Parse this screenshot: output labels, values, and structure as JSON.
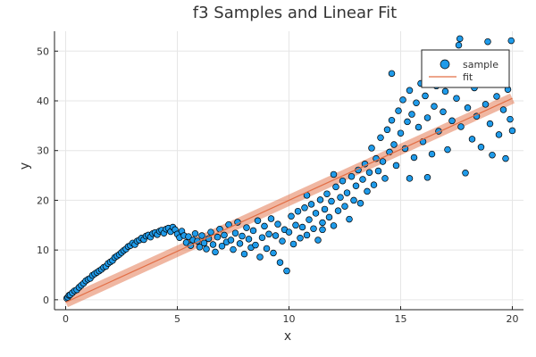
{
  "chart_data": {
    "type": "scatter",
    "title": "f3 Samples and Linear Fit",
    "xlabel": "x",
    "ylabel": "y",
    "xlim": [
      -0.5,
      20.5
    ],
    "ylim": [
      -2,
      54
    ],
    "xticks": [
      0,
      5,
      10,
      15,
      20
    ],
    "yticks": [
      0,
      10,
      20,
      30,
      40,
      50
    ],
    "grid": true,
    "legend_position": "top-right",
    "series": [
      {
        "name": "sample",
        "kind": "scatter",
        "color": "#1f9bea",
        "edge_color": "#000000",
        "points": [
          [
            0.05,
            0.3
          ],
          [
            0.1,
            0.5
          ],
          [
            0.15,
            0.9
          ],
          [
            0.2,
            1.0
          ],
          [
            0.3,
            1.4
          ],
          [
            0.4,
            1.8
          ],
          [
            0.5,
            2.0
          ],
          [
            0.6,
            2.5
          ],
          [
            0.7,
            2.9
          ],
          [
            0.8,
            3.3
          ],
          [
            0.9,
            3.8
          ],
          [
            1.0,
            4.1
          ],
          [
            1.1,
            4.3
          ],
          [
            1.2,
            4.9
          ],
          [
            1.3,
            5.2
          ],
          [
            1.4,
            5.5
          ],
          [
            1.5,
            5.8
          ],
          [
            1.6,
            6.1
          ],
          [
            1.7,
            6.5
          ],
          [
            1.8,
            6.7
          ],
          [
            1.9,
            7.3
          ],
          [
            2.0,
            7.6
          ],
          [
            2.1,
            7.9
          ],
          [
            2.2,
            8.5
          ],
          [
            2.3,
            8.8
          ],
          [
            2.4,
            9.1
          ],
          [
            2.5,
            9.5
          ],
          [
            2.6,
            9.9
          ],
          [
            2.7,
            10.2
          ],
          [
            2.8,
            10.7
          ],
          [
            2.9,
            10.9
          ],
          [
            3.0,
            11.4
          ],
          [
            3.1,
            11.1
          ],
          [
            3.2,
            11.8
          ],
          [
            3.3,
            12.0
          ],
          [
            3.4,
            12.4
          ],
          [
            3.5,
            12.1
          ],
          [
            3.6,
            12.8
          ],
          [
            3.7,
            13.0
          ],
          [
            3.8,
            12.6
          ],
          [
            3.9,
            13.3
          ],
          [
            4.0,
            13.5
          ],
          [
            4.1,
            13.1
          ],
          [
            4.2,
            13.8
          ],
          [
            4.3,
            14.0
          ],
          [
            4.4,
            13.4
          ],
          [
            4.5,
            14.2
          ],
          [
            4.6,
            14.4
          ],
          [
            4.7,
            13.7
          ],
          [
            4.8,
            14.6
          ],
          [
            4.9,
            14.1
          ],
          [
            5.0,
            13.2
          ],
          [
            5.1,
            12.5
          ],
          [
            5.2,
            13.8
          ],
          [
            5.3,
            12.9
          ],
          [
            5.4,
            11.5
          ],
          [
            5.5,
            12.7
          ],
          [
            5.6,
            10.9
          ],
          [
            5.7,
            12.0
          ],
          [
            5.8,
            13.3
          ],
          [
            5.9,
            11.8
          ],
          [
            6.0,
            10.6
          ],
          [
            6.1,
            12.9
          ],
          [
            6.2,
            11.4
          ],
          [
            6.3,
            10.2
          ],
          [
            6.4,
            12.3
          ],
          [
            6.5,
            13.6
          ],
          [
            6.6,
            11.1
          ],
          [
            6.7,
            9.6
          ],
          [
            6.8,
            12.6
          ],
          [
            6.9,
            14.2
          ],
          [
            7.0,
            10.8
          ],
          [
            7.1,
            13.0
          ],
          [
            7.2,
            11.6
          ],
          [
            7.3,
            15.1
          ],
          [
            7.4,
            12.0
          ],
          [
            7.5,
            10.1
          ],
          [
            7.6,
            13.4
          ],
          [
            7.7,
            15.6
          ],
          [
            7.8,
            11.3
          ],
          [
            7.9,
            12.8
          ],
          [
            8.0,
            9.2
          ],
          [
            8.1,
            14.5
          ],
          [
            8.2,
            12.2
          ],
          [
            8.3,
            10.5
          ],
          [
            8.4,
            13.9
          ],
          [
            8.5,
            11.0
          ],
          [
            8.6,
            15.9
          ],
          [
            8.7,
            8.6
          ],
          [
            8.8,
            12.5
          ],
          [
            8.9,
            14.8
          ],
          [
            9.0,
            10.3
          ],
          [
            9.1,
            13.2
          ],
          [
            9.2,
            16.3
          ],
          [
            9.3,
            9.4
          ],
          [
            9.4,
            12.9
          ],
          [
            9.5,
            15.2
          ],
          [
            9.6,
            7.5
          ],
          [
            9.7,
            11.8
          ],
          [
            9.8,
            14.1
          ],
          [
            9.9,
            5.8
          ],
          [
            10.0,
            13.6
          ],
          [
            10.1,
            16.8
          ],
          [
            10.2,
            11.2
          ],
          [
            10.3,
            15.0
          ],
          [
            10.4,
            17.8
          ],
          [
            10.5,
            12.4
          ],
          [
            10.6,
            14.6
          ],
          [
            10.7,
            18.5
          ],
          [
            10.8,
            13.0
          ],
          [
            10.9,
            16.1
          ],
          [
            11.0,
            19.2
          ],
          [
            11.1,
            14.3
          ],
          [
            11.2,
            17.4
          ],
          [
            11.3,
            12.0
          ],
          [
            11.4,
            20.1
          ],
          [
            11.5,
            15.5
          ],
          [
            11.6,
            18.2
          ],
          [
            11.7,
            21.3
          ],
          [
            11.8,
            16.6
          ],
          [
            11.9,
            19.8
          ],
          [
            12.0,
            14.9
          ],
          [
            12.1,
            22.7
          ],
          [
            12.2,
            17.9
          ],
          [
            12.3,
            20.6
          ],
          [
            12.4,
            23.9
          ],
          [
            12.5,
            18.8
          ],
          [
            12.6,
            21.5
          ],
          [
            12.7,
            16.2
          ],
          [
            12.8,
            24.8
          ],
          [
            12.9,
            20.0
          ],
          [
            13.0,
            22.9
          ],
          [
            13.1,
            26.1
          ],
          [
            13.2,
            19.4
          ],
          [
            13.3,
            24.2
          ],
          [
            13.4,
            27.3
          ],
          [
            13.5,
            21.8
          ],
          [
            13.6,
            25.6
          ],
          [
            13.7,
            30.5
          ],
          [
            13.8,
            23.1
          ],
          [
            13.9,
            28.4
          ],
          [
            14.0,
            25.9
          ],
          [
            14.1,
            32.6
          ],
          [
            14.2,
            27.8
          ],
          [
            14.3,
            24.4
          ],
          [
            14.4,
            34.2
          ],
          [
            14.5,
            29.7
          ],
          [
            14.6,
            36.1
          ],
          [
            14.7,
            31.2
          ],
          [
            14.8,
            27.0
          ],
          [
            14.9,
            38.0
          ],
          [
            15.0,
            33.5
          ],
          [
            15.1,
            40.2
          ],
          [
            15.2,
            30.4
          ],
          [
            15.3,
            35.8
          ],
          [
            15.4,
            42.1
          ],
          [
            15.5,
            37.3
          ],
          [
            15.6,
            28.6
          ],
          [
            15.7,
            39.6
          ],
          [
            15.8,
            34.7
          ],
          [
            15.9,
            43.5
          ],
          [
            16.0,
            31.8
          ],
          [
            16.1,
            41.0
          ],
          [
            16.2,
            36.6
          ],
          [
            16.3,
            45.0
          ],
          [
            16.4,
            29.3
          ],
          [
            16.5,
            38.9
          ],
          [
            16.6,
            43.0
          ],
          [
            16.7,
            33.9
          ],
          [
            16.8,
            46.4
          ],
          [
            16.9,
            37.8
          ],
          [
            17.0,
            41.9
          ],
          [
            17.1,
            30.2
          ],
          [
            17.2,
            44.6
          ],
          [
            17.3,
            36.0
          ],
          [
            17.4,
            48.3
          ],
          [
            17.5,
            40.5
          ],
          [
            17.6,
            51.2
          ],
          [
            17.7,
            34.8
          ],
          [
            17.8,
            44.0
          ],
          [
            17.9,
            25.5
          ],
          [
            18.0,
            38.6
          ],
          [
            18.1,
            46.8
          ],
          [
            18.2,
            32.3
          ],
          [
            18.3,
            42.6
          ],
          [
            18.4,
            36.9
          ],
          [
            18.5,
            49.0
          ],
          [
            18.6,
            30.7
          ],
          [
            18.7,
            44.9
          ],
          [
            18.8,
            39.3
          ],
          [
            18.9,
            51.9
          ],
          [
            19.0,
            35.4
          ],
          [
            19.1,
            29.1
          ],
          [
            19.2,
            47.1
          ],
          [
            19.3,
            40.9
          ],
          [
            19.4,
            33.2
          ],
          [
            19.5,
            45.7
          ],
          [
            19.6,
            38.2
          ],
          [
            19.7,
            28.4
          ],
          [
            19.8,
            42.3
          ],
          [
            19.9,
            36.3
          ],
          [
            20.0,
            34.0
          ],
          [
            19.95,
            52.1
          ],
          [
            17.65,
            52.5
          ],
          [
            14.6,
            45.5
          ],
          [
            16.2,
            24.6
          ],
          [
            15.4,
            24.4
          ],
          [
            11.5,
            14.1
          ],
          [
            12.0,
            25.2
          ],
          [
            10.8,
            21.0
          ]
        ]
      },
      {
        "name": "fit",
        "kind": "line",
        "color": "#e26f46",
        "x": [
          0,
          20
        ],
        "y": [
          -0.5,
          40.5
        ]
      }
    ]
  }
}
